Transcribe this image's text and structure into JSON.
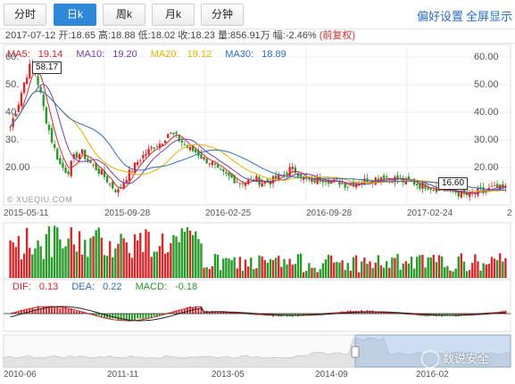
{
  "tabs": [
    {
      "label": "分时",
      "active": false
    },
    {
      "label": "日k",
      "active": true
    },
    {
      "label": "周k",
      "active": false
    },
    {
      "label": "月k",
      "active": false
    },
    {
      "label": "分钟",
      "active": false
    }
  ],
  "links": {
    "settings": "偏好设置",
    "fullscreen": "全屏显示"
  },
  "quote": {
    "date": "2017-07-12",
    "open_label": "开:",
    "open": "18.65",
    "high_label": "高:",
    "high": "18.88",
    "low_label": "低:",
    "low": "18.02",
    "close_label": "收:",
    "close": "18.23",
    "volume_label": "量:",
    "volume": "856.91万",
    "change_label": "幅:",
    "change": "-2.46%",
    "adjust": "(前复权)"
  },
  "ma": [
    {
      "label": "MA5:",
      "value": "19.14",
      "color": "#d5292d"
    },
    {
      "label": "MA10:",
      "value": "19.20",
      "color": "#7a3ea6"
    },
    {
      "label": "MA20:",
      "value": "19.12",
      "color": "#e8b100"
    },
    {
      "label": "MA30:",
      "value": "18.89",
      "color": "#2f6fb8"
    }
  ],
  "macd": [
    {
      "label": "DIF:",
      "value": "0.13",
      "color": "#d5292d"
    },
    {
      "label": "DEA:",
      "value": "0.22",
      "color": "#2f6fb8"
    },
    {
      "label": "MACD:",
      "value": "-0.18",
      "color": "#2a9a2a"
    }
  ],
  "price_axis": [
    "60.00",
    "50.00",
    "40.00",
    "30.00",
    "20.00"
  ],
  "price_axis_left": [
    "60.",
    "50.",
    "40.",
    "30.",
    "20.00"
  ],
  "date_axis": [
    "2015-05-11",
    "2015-09-28",
    "2016-02-25",
    "2016-09-28",
    "2017-02-24",
    "2"
  ],
  "nav_axis": [
    "2010-06",
    "2011-11",
    "2013-05",
    "2014-09",
    "2016-02"
  ],
  "markers": {
    "high": "58.17",
    "low": "16.60"
  },
  "watermark": "© XUEQIU.COM",
  "brand": "数说安全",
  "colors": {
    "up": "#d5292d",
    "down": "#2a9a2a",
    "accent": "#2f87d8"
  },
  "chart_data": {
    "type": "candlestick",
    "title": "",
    "ylim": [
      14,
      63
    ],
    "close": [
      38,
      44,
      52,
      58,
      50,
      40,
      32,
      26,
      24,
      29,
      30,
      27,
      25,
      23,
      20,
      18,
      22,
      25,
      28,
      30,
      32,
      33,
      36,
      35,
      33,
      31,
      30,
      28,
      27,
      24,
      23,
      22,
      21,
      21,
      22,
      21,
      21,
      22,
      23,
      25,
      24,
      22,
      21,
      22,
      22,
      21,
      21,
      20,
      21,
      21,
      22,
      22,
      23,
      22,
      22,
      21,
      21,
      20,
      20,
      19,
      19,
      18,
      18,
      17,
      17,
      18,
      18,
      19,
      19,
      19
    ]
  }
}
